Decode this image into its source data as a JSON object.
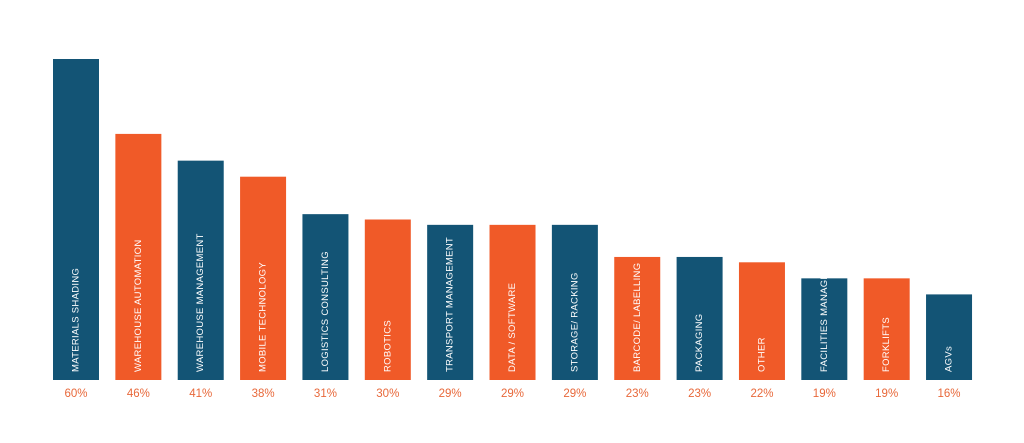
{
  "chart_data": {
    "type": "bar",
    "categories": [
      "MATERIALS SHADING",
      "WAREHOUSE AUTOMATION",
      "WAREHOUSE MANAGEMENT",
      "MOBILE TECHNOLOGY",
      "LOGISTICS CONSULTING",
      "ROBOTICS",
      "TRANSPORT MANAGEMENT",
      "DATA / SOFTWARE",
      "STORAGE/ RACKING",
      "BARCODE/ LABELLING",
      "PACKAGING",
      "OTHER",
      "FACILITIES MANAGEMENT",
      "FORKLIFTS",
      "AGVs"
    ],
    "values": [
      60,
      46,
      41,
      38,
      31,
      30,
      29,
      29,
      29,
      23,
      23,
      22,
      19,
      19,
      16
    ],
    "value_labels": [
      "60%",
      "46%",
      "41%",
      "38%",
      "31%",
      "30%",
      "29%",
      "29%",
      "29%",
      "23%",
      "23%",
      "22%",
      "19%",
      "19%",
      "16%"
    ],
    "colors": [
      "#135475",
      "#f05a28",
      "#135475",
      "#f05a28",
      "#135475",
      "#f05a28",
      "#135475",
      "#f05a28",
      "#135475",
      "#f05a28",
      "#135475",
      "#f05a28",
      "#135475",
      "#f05a28",
      "#135475"
    ],
    "value_label_color": "#e8683a"
  }
}
